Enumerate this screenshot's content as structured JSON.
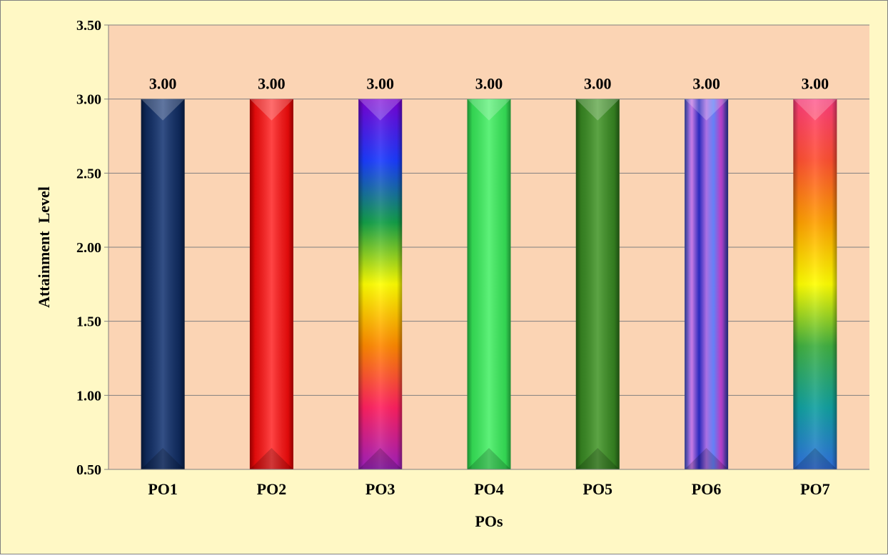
{
  "chart_data": {
    "type": "bar",
    "title": "",
    "xlabel": "POs",
    "ylabel": "Attainment  Level",
    "categories": [
      "PO1",
      "PO2",
      "PO3",
      "PO4",
      "PO5",
      "PO6",
      "PO7"
    ],
    "series": [
      {
        "values": [
          3.0,
          3.0,
          3.0,
          3.0,
          3.0,
          3.0,
          3.0
        ]
      }
    ],
    "data_labels": [
      "3.00",
      "3.00",
      "3.00",
      "3.00",
      "3.00",
      "3.00",
      "3.00"
    ],
    "ylim": [
      0.5,
      3.5
    ],
    "yticks": [
      "0.50",
      "1.00",
      "1.50",
      "2.00",
      "2.50",
      "3.00",
      "3.50"
    ],
    "grid": true,
    "legend": "none",
    "colors": {
      "chart_area_background": "#FFF8C5",
      "plot_area_background": "#FBD4B4",
      "gridline": "#808080",
      "border": "#808080",
      "bars": [
        [
          "#0B2453",
          "#1D3C78",
          "#0B2453"
        ],
        [
          "#E30000",
          "#FF3030",
          "#E30000"
        ],
        [
          "#7A00D6",
          "#1A3CFF",
          "#12A048",
          "#FFFF00",
          "#FF8800",
          "#FF2060",
          "#A020C0"
        ],
        [
          "#2ED84F",
          "#4CF06A",
          "#2ED84F"
        ],
        [
          "#2F7A1C",
          "#4A9A30",
          "#2F7A1C"
        ],
        [
          "#4A5CD8",
          "#D080F0",
          "#2020C0",
          "#A060E0",
          "#6080FF",
          "#C040D0",
          "#3040B0"
        ],
        [
          "#FF3C7C",
          "#FF5030",
          "#FFA000",
          "#FFFF00",
          "#40B040",
          "#10A0A0",
          "#3070E0"
        ]
      ]
    }
  }
}
